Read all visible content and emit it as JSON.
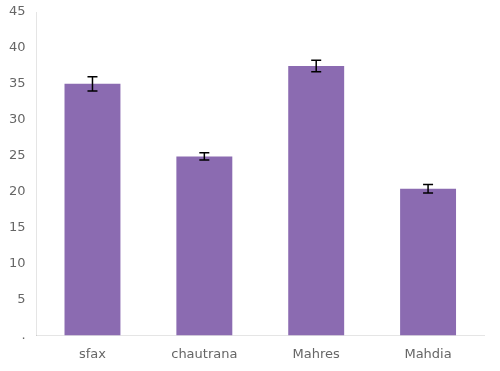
{
  "chart_data": {
    "type": "bar",
    "categories": [
      "sfax",
      "chautrana",
      "Mahres",
      "Mahdia"
    ],
    "values": [
      35.0,
      24.9,
      37.5,
      20.4
    ],
    "errors": [
      1.0,
      0.5,
      0.8,
      0.6
    ],
    "color": "#8B6BB1",
    "ylim": [
      0,
      45
    ],
    "yticks": [
      {
        "value": 0,
        "label": "."
      },
      5,
      10,
      15,
      20,
      25,
      30,
      35,
      40,
      45
    ],
    "grid": false
  }
}
